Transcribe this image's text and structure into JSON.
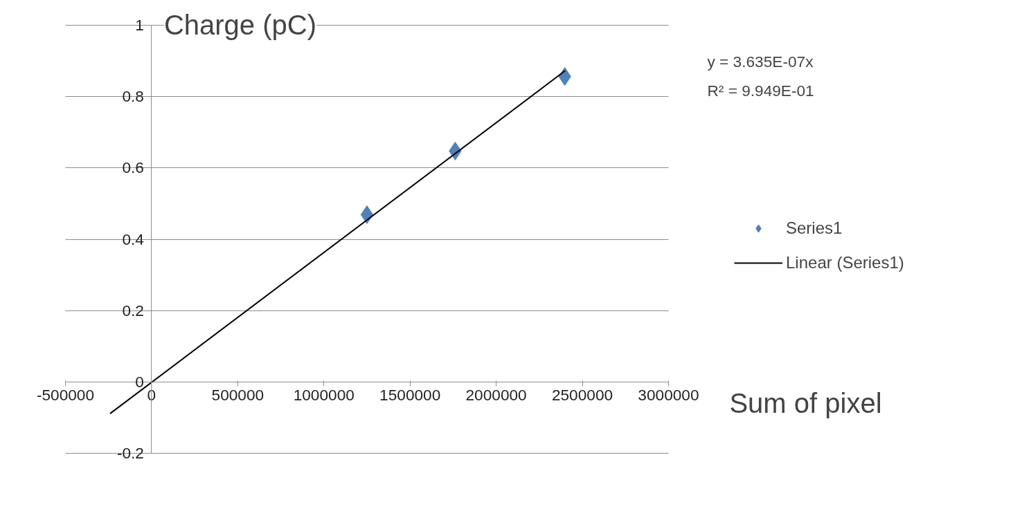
{
  "chart_data": {
    "type": "scatter",
    "xlabel": "Sum of pixel",
    "ylabel": "Charge (pC)",
    "annotations": [
      "y = 3.635E-07x\nR² = 9.949E-01"
    ],
    "x": [
      1250000,
      1762000,
      2398000
    ],
    "series": [
      {
        "name": "Series1",
        "color": "#4f81bd",
        "marker": "diamond",
        "values": [
          0.469,
          0.647,
          0.856
        ]
      },
      {
        "name": "Linear (Series1)",
        "type": "line",
        "color": "#000000",
        "line_style": "solid",
        "x": [
          -241000,
          2400000
        ],
        "values": [
          -0.088,
          0.872
        ]
      }
    ],
    "xlim": [
      -500000,
      3000000
    ],
    "ylim": [
      -0.2,
      1
    ],
    "xticks": [
      -500000,
      0,
      500000,
      1000000,
      1500000,
      2000000,
      2500000,
      3000000
    ],
    "yticks": [
      -0.2,
      0,
      0.2,
      0.4,
      0.6,
      0.8,
      1
    ],
    "grid": "y",
    "legend": "right"
  }
}
